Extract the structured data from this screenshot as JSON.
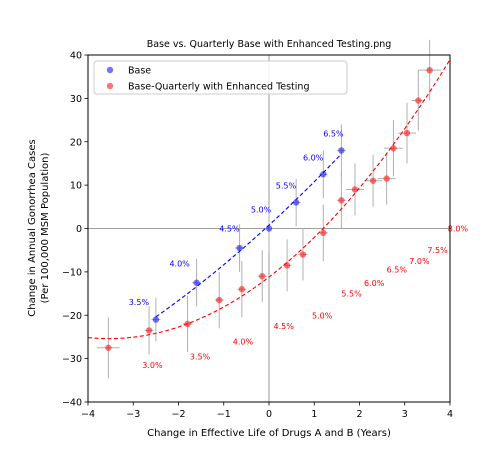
{
  "chart_data": {
    "type": "scatter",
    "title": "Base vs. Quarterly Base with Enhanced Testing.png",
    "xlabel": "Change in Effective Life of Drugs A and B (Years)",
    "ylabel_line1": "Change in Annual Gonorrhea Cases",
    "ylabel_line2": "(Per 100,000 MSM Population)",
    "xlim": [
      -4,
      4
    ],
    "ylim": [
      -40,
      40
    ],
    "xticks": [
      -4,
      -3,
      -2,
      -1,
      0,
      1,
      2,
      3,
      4
    ],
    "yticks": [
      -40,
      -30,
      -20,
      -10,
      0,
      10,
      20,
      30,
      40
    ],
    "reference_lines": {
      "x": 0,
      "y": 0
    },
    "legend": {
      "position": "upper-left",
      "entries": [
        "Base",
        "Base-Quarterly with Enhanced Testing"
      ]
    },
    "series": [
      {
        "name": "Base",
        "color": "#0000ff",
        "fit_line": "dashed",
        "points": [
          {
            "x": -2.5,
            "y": -21,
            "xerr": 0.1,
            "yerr": 5,
            "label": "3.5%",
            "lx": -3.1,
            "ly": -17.6
          },
          {
            "x": -1.6,
            "y": -12.5,
            "xerr": 0.1,
            "yerr": 5.5,
            "label": "4.0%",
            "lx": -2.2,
            "ly": -8.8
          },
          {
            "x": -0.65,
            "y": -4.5,
            "xerr": 0.1,
            "yerr": 5.5,
            "label": "4.5%",
            "lx": -1.1,
            "ly": -0.7
          },
          {
            "x": 0,
            "y": 0,
            "xerr": 0.1,
            "yerr": 5.5,
            "label": "5.0%",
            "lx": -0.4,
            "ly": 3.7
          },
          {
            "x": 0.6,
            "y": 6,
            "xerr": 0.1,
            "yerr": 5.5,
            "label": "5.5%",
            "lx": 0.15,
            "ly": 9.2
          },
          {
            "x": 1.2,
            "y": 12.5,
            "xerr": 0.1,
            "yerr": 5.5,
            "label": "6.0%",
            "lx": 0.75,
            "ly": 15.7
          },
          {
            "x": 1.6,
            "y": 18,
            "xerr": 0.1,
            "yerr": 6,
            "label": "6.5%",
            "lx": 1.2,
            "ly": 21.2
          }
        ]
      },
      {
        "name": "Base-Quarterly with Enhanced Testing",
        "color": "#ff0000",
        "fit_line": "dashed",
        "points": [
          {
            "x": -3.55,
            "y": -27.5,
            "xerr": 0.25,
            "yerr": 7,
            "label": "3.0%",
            "lx": -2.8,
            "ly": -32.2
          },
          {
            "x": -2.65,
            "y": -23.5,
            "xerr": 0.1,
            "yerr": 5.5,
            "label": "3.5%",
            "lx": -1.75,
            "ly": -30.2
          },
          {
            "x": -1.8,
            "y": -22,
            "xerr": 0.1,
            "yerr": 6.5,
            "label": "4.0%",
            "lx": -0.8,
            "ly": -26.7
          },
          {
            "x": -1.1,
            "y": -16.5,
            "xerr": 0.1,
            "yerr": 6.5,
            "label": "4.5%",
            "lx": 0.1,
            "ly": -23.2
          },
          {
            "x": -0.6,
            "y": -14,
            "xerr": 0.1,
            "yerr": 6.5,
            "label": "5.0%",
            "lx": 0.95,
            "ly": -20.7
          },
          {
            "x": -0.15,
            "y": -11,
            "xerr": 0.1,
            "yerr": 6,
            "label": "5.5%",
            "lx": 1.6,
            "ly": -15.7
          },
          {
            "x": 0.4,
            "y": -8.5,
            "xerr": 0.1,
            "yerr": 6,
            "label": "6.0%",
            "lx": 2.1,
            "ly": -13.2
          },
          {
            "x": 0.75,
            "y": -6,
            "xerr": 0.1,
            "yerr": 6,
            "label": "6.5%",
            "lx": 2.6,
            "ly": -10.2
          },
          {
            "x": 1.2,
            "y": -1,
            "xerr": 0.1,
            "yerr": 6.5,
            "label": "7.0%",
            "lx": 3.1,
            "ly": -8.2
          },
          {
            "x": 1.6,
            "y": 6.5,
            "xerr": 0.1,
            "yerr": 6.5,
            "label": "7.5%",
            "lx": 3.5,
            "ly": -5.7
          },
          {
            "x": 1.9,
            "y": 9,
            "xerr": 0.2,
            "yerr": 6,
            "label": "8.0%",
            "lx": 3.95,
            "ly": -0.7
          },
          {
            "x": 2.3,
            "y": 11,
            "xerr": 0.2,
            "yerr": 6
          },
          {
            "x": 2.6,
            "y": 11.5,
            "xerr": 0.2,
            "yerr": 6
          },
          {
            "x": 2.75,
            "y": 18.5,
            "xerr": 0.2,
            "yerr": 6.5
          },
          {
            "x": 3.05,
            "y": 22,
            "xerr": 0.2,
            "yerr": 7
          },
          {
            "x": 3.3,
            "y": 29.5,
            "xerr": 0.15,
            "yerr": 7
          },
          {
            "x": 3.55,
            "y": 36.5,
            "xerr": 0.25,
            "yerr": 7
          }
        ]
      }
    ]
  }
}
